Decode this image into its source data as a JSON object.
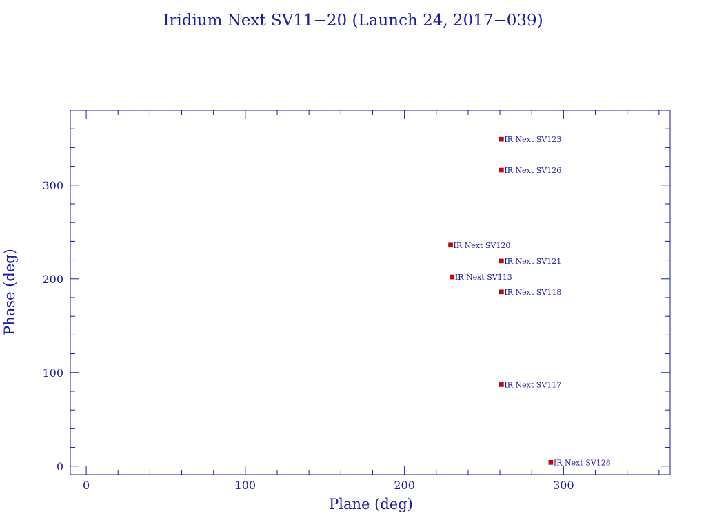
{
  "chart_data": {
    "type": "scatter",
    "title": "Iridium Next SV11−20 (Launch 24, 2017−039)",
    "xlabel": "Plane (deg)",
    "ylabel": "Phase (deg)",
    "xlim": [
      -10,
      367
    ],
    "ylim": [
      -9,
      380
    ],
    "xticks": [
      0,
      100,
      200,
      300
    ],
    "yticks": [
      0,
      100,
      200,
      300
    ],
    "xtick_labels": [
      "0",
      "100",
      "200",
      "300"
    ],
    "ytick_labels": [
      "0",
      "100",
      "200",
      "300"
    ],
    "x_minor_step": 20,
    "y_minor_step": 20,
    "grid": false,
    "colors": {
      "axis": "#1a1aa6",
      "marker": "#e00000"
    },
    "points": [
      {
        "label": "IR Next SV123",
        "x": 261,
        "y": 349
      },
      {
        "label": "IR Next SV126",
        "x": 261,
        "y": 316
      },
      {
        "label": "IR Next SV120",
        "x": 229,
        "y": 236
      },
      {
        "label": "IR Next SV121",
        "x": 261,
        "y": 219
      },
      {
        "label": "IR Next SV113",
        "x": 230,
        "y": 202
      },
      {
        "label": "IR Next SV118",
        "x": 261,
        "y": 186
      },
      {
        "label": "IR Next SV117",
        "x": 261,
        "y": 87
      },
      {
        "label": "IR Next SV128",
        "x": 292,
        "y": 4
      }
    ]
  }
}
